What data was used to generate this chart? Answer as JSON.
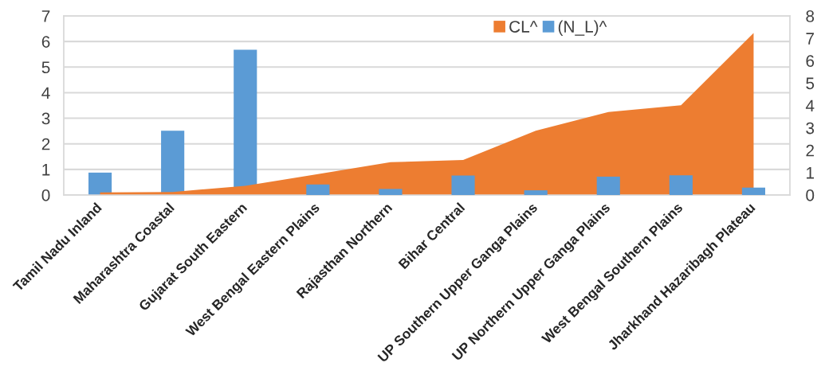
{
  "chart_data": {
    "type": "bar",
    "categories": [
      "Tamil Nadu Inland",
      "Maharashtra Coastal",
      "Gujarat South Eastern",
      "West Bengal Eastern Plains",
      "Rajasthan Northern",
      "Bihar Central",
      "UP Southern Upper Ganga Plains",
      "UP Northern Upper Ganga Plains",
      "West Bengal Southern Plains",
      "Jharkhand Hazaribagh Plateau"
    ],
    "series": [
      {
        "name": "CL^",
        "type": "area",
        "color": "#ed7d31",
        "values": [
          0.1,
          0.12,
          0.36,
          0.82,
          1.28,
          1.37,
          2.51,
          3.24,
          3.51,
          6.33
        ]
      },
      {
        "name": "(N_L)^",
        "axis": "y2",
        "color": "#5b9bd5",
        "values": [
          1.0,
          2.87,
          6.49,
          0.47,
          0.27,
          0.87,
          0.21,
          0.82,
          0.88,
          0.33
        ]
      }
    ],
    "ylim": [
      0,
      7
    ],
    "yticks": [
      0,
      1,
      2,
      3,
      4,
      5,
      6,
      7
    ],
    "y2lim": [
      0,
      8
    ],
    "y2ticks": [
      0,
      1,
      2,
      3,
      4,
      5,
      6,
      7,
      8
    ],
    "grid": "y",
    "legend": "top"
  }
}
